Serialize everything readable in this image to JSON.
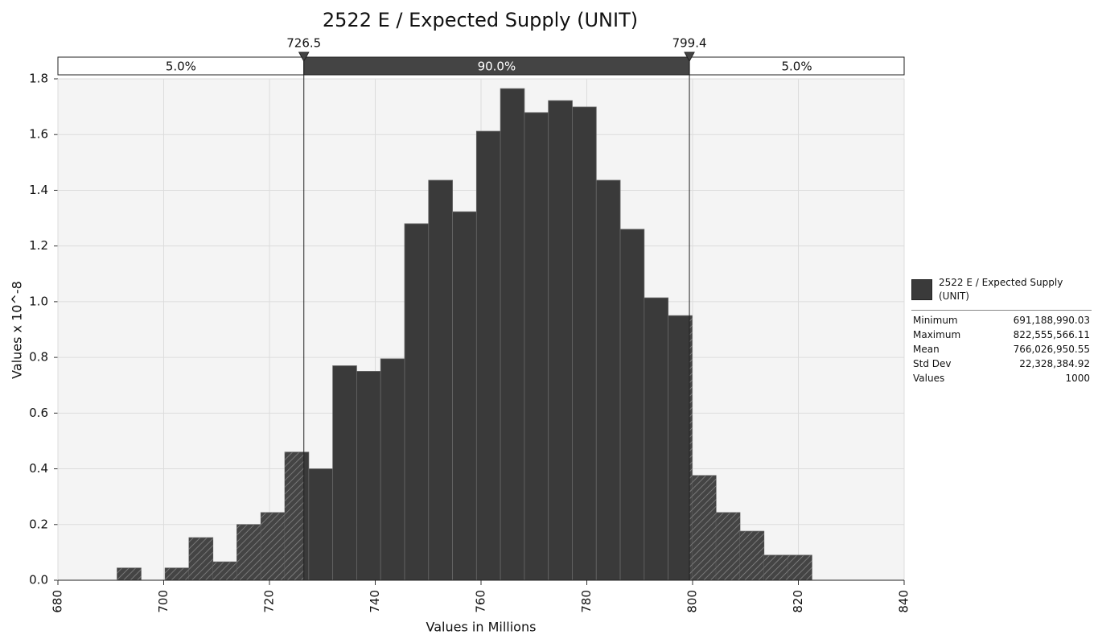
{
  "chart_data": {
    "type": "histogram",
    "title": "2522 E / Expected Supply (UNIT)",
    "xlabel": "Values in Millions",
    "ylabel": "Values x 10^-8",
    "bins": [
      691.19,
      695.72,
      700.25,
      704.78,
      709.31,
      713.84,
      718.37,
      722.9,
      727.43,
      731.96,
      736.49,
      741.02,
      745.55,
      750.08,
      754.61,
      759.14,
      763.67,
      768.2,
      772.73,
      777.26,
      781.79,
      786.32,
      790.85,
      795.38,
      799.91,
      804.44,
      808.97,
      813.5,
      818.03,
      822.56
    ],
    "series": [
      {
        "name": "2522 E / Expected Supply (UNIT)",
        "color": "#3a3a3a",
        "values": [
          0.044,
          0,
          0.044,
          0.153,
          0.066,
          0.2,
          0.243,
          0.46,
          0.4,
          0.77,
          0.75,
          0.795,
          1.28,
          1.436,
          1.323,
          1.612,
          1.765,
          1.679,
          1.722,
          1.699,
          1.436,
          1.26,
          1.014,
          0.95,
          0.376,
          0.243,
          0.176,
          0.09,
          0.09
        ]
      }
    ],
    "xlim": [
      680,
      840
    ],
    "xticks": [
      680,
      700,
      720,
      740,
      760,
      780,
      800,
      820,
      840
    ],
    "ylim": [
      0,
      1.8
    ],
    "yticks": [
      {
        "value": 0,
        "label": "0.0"
      },
      0.2,
      0.4,
      0.6,
      0.8,
      {
        "value": 1,
        "label": "1.0"
      },
      1.2,
      1.4,
      1.6,
      1.8
    ],
    "grid": true,
    "delimiters": [
      726.5,
      799.4
    ],
    "band_labels": [
      {
        "value": 5,
        "label": "5.0%"
      },
      {
        "value": 90,
        "label": "90.0%"
      },
      {
        "value": 5,
        "label": "5.0%"
      }
    ],
    "stats": [
      [
        "Minimum",
        "691,188,990.03"
      ],
      [
        "Maximum",
        "822,555,566.11"
      ],
      [
        "Mean",
        "766,026,950.55"
      ],
      [
        "Std Dev",
        "22,328,384.92"
      ],
      [
        "Values",
        "1000"
      ]
    ]
  }
}
